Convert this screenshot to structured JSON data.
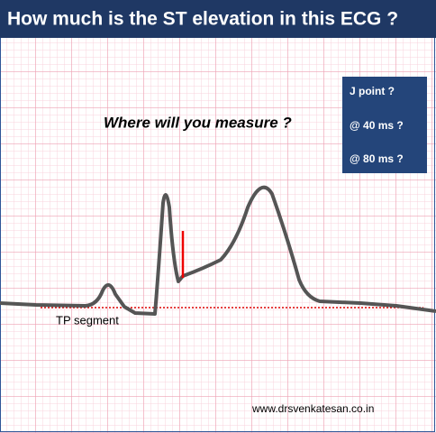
{
  "header": {
    "title": "How  much is the ST elevation  in this ECG ?"
  },
  "question": "Where will you measure ?",
  "options": [
    "J point ?",
    "@ 40 ms  ?",
    "@ 80 ms  ?"
  ],
  "baseline_label": "TP segment",
  "footer": "www.drsvenkatesan.co.in"
}
